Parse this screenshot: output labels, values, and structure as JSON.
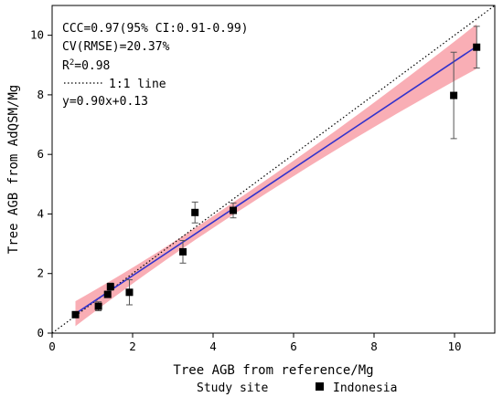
{
  "chart_data": {
    "type": "scatter",
    "xlabel": "Tree AGB from reference/Mg",
    "ylabel": "Tree AGB from AdQSM/Mg",
    "xlim": [
      0,
      11
    ],
    "ylim": [
      0,
      11
    ],
    "x_ticks": [
      "0",
      "2",
      "4",
      "6",
      "8",
      "10"
    ],
    "y_ticks": [
      "0",
      "2",
      "4",
      "6",
      "8",
      "10"
    ],
    "grid": false,
    "series": [
      {
        "name": "Indonesia",
        "color": "#000000",
        "marker": "square",
        "points": [
          {
            "x": 0.58,
            "y": 0.62,
            "err": 0.0
          },
          {
            "x": 1.15,
            "y": 0.9,
            "err": 0.15
          },
          {
            "x": 1.38,
            "y": 1.3,
            "err": 0.1
          },
          {
            "x": 1.45,
            "y": 1.56,
            "err": 0.12
          },
          {
            "x": 1.92,
            "y": 1.37,
            "err": 0.42
          },
          {
            "x": 3.25,
            "y": 2.73,
            "err": 0.38
          },
          {
            "x": 3.55,
            "y": 4.05,
            "err": 0.35
          },
          {
            "x": 4.5,
            "y": 4.12,
            "err": 0.25
          },
          {
            "x": 9.98,
            "y": 7.98,
            "err": 1.45
          },
          {
            "x": 10.55,
            "y": 9.6,
            "err": 0.7
          }
        ]
      }
    ],
    "fit_line": {
      "slope": 0.9,
      "intercept": 0.13,
      "x_range": [
        0.58,
        10.55
      ],
      "color": "#3333cc"
    },
    "confidence_band": {
      "color": "#f8a0a8",
      "half_width_at_min": 0.42,
      "half_width_at_mean": 0.2,
      "half_width_at_max": 0.75
    },
    "identity_line": {
      "style": "dotted"
    },
    "annotations": {
      "ccc": "CCC=0.97(95% CI:0.91-0.99)",
      "cv": "CV(RMSE)=20.37%",
      "r2_prefix": "R",
      "r2_sup": "2",
      "r2_value": "=0.98",
      "identity_label": "1:1 line",
      "equation": "y=0.90x+0.13"
    },
    "legend": {
      "title": "Study site",
      "entry": "Indonesia",
      "position": "bottom"
    }
  }
}
